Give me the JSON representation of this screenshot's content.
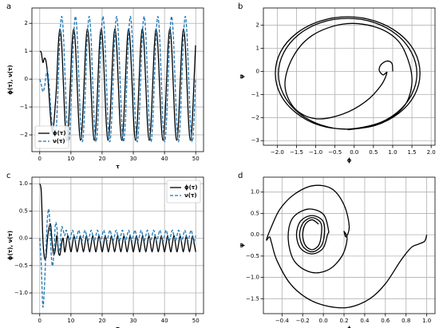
{
  "chart_data": [
    {
      "type": "line",
      "label": "a",
      "xlabel": "τ",
      "ylabel": "ϕ(τ), ν(τ)",
      "grid": true,
      "legend": "lower left",
      "xlim": [
        -2.5,
        52.5
      ],
      "ylim": [
        -2.6,
        2.55
      ],
      "xticks": [
        0,
        10,
        20,
        30,
        40,
        50
      ],
      "yticks": [
        {
          "value": -2,
          "label": "−2"
        },
        {
          "value": -1,
          "label": "−1"
        },
        0,
        1,
        2
      ],
      "x": [
        0,
        0.5,
        1,
        1.5,
        2,
        2.5,
        3,
        3.5,
        4,
        4.5,
        5,
        5.4,
        5.95,
        6.5,
        7.05,
        7.6,
        8.15,
        8.7,
        9.25,
        9.8,
        10.35,
        10.9,
        11.45,
        12,
        12.55,
        13.1,
        13.65,
        14.2,
        14.75,
        15.3,
        15.85,
        16.4,
        16.95,
        17.5,
        18.05,
        18.6,
        19.15,
        19.7,
        20.25,
        20.8,
        21.35,
        21.9,
        22.45,
        23,
        23.55,
        24.1,
        24.65,
        25.2,
        25.75,
        26.3,
        26.85,
        27.4,
        27.95,
        28.5,
        29.05,
        29.6,
        30.15,
        30.7,
        31.25,
        31.8,
        32.35,
        32.9,
        33.45,
        34,
        34.55,
        35.1,
        35.65,
        36.2,
        36.75,
        37.3,
        37.85,
        38.4,
        38.95,
        39.5,
        40.05,
        40.6,
        41.15,
        41.7,
        42.25,
        42.8,
        43.35,
        43.9,
        44.45,
        45,
        45.55,
        46.1,
        46.65,
        47.2,
        47.75,
        48.3,
        48.85,
        49.4,
        49.95
      ],
      "series": [
        {
          "name": "ϕ(τ)",
          "color": "#000000",
          "linestyle": "solid",
          "values": [
            1.0,
            0.95,
            0.6,
            0.75,
            0.65,
            0.2,
            -0.6,
            -1.4,
            -1.9,
            -1.6,
            -0.9,
            -0.2,
            1.21,
            1.8,
            1.21,
            -0.2,
            -1.61,
            -2.2,
            -1.61,
            -0.2,
            1.21,
            1.8,
            1.21,
            -0.2,
            -1.61,
            -2.2,
            -1.61,
            -0.2,
            1.21,
            1.8,
            1.21,
            -0.2,
            -1.61,
            -2.2,
            -1.61,
            -0.2,
            1.21,
            1.8,
            1.21,
            -0.2,
            -1.61,
            -2.2,
            -1.61,
            -0.2,
            1.21,
            1.8,
            1.21,
            -0.2,
            -1.61,
            -2.2,
            -1.61,
            -0.2,
            1.21,
            1.8,
            1.21,
            -0.2,
            -1.61,
            -2.2,
            -1.61,
            -0.2,
            1.21,
            1.8,
            1.21,
            -0.2,
            -1.61,
            -2.2,
            -1.61,
            -0.2,
            1.21,
            1.8,
            1.21,
            -0.2,
            -1.61,
            -2.2,
            -1.61,
            -0.2,
            1.21,
            1.8,
            1.21,
            -0.2,
            -1.61,
            -2.2,
            -1.61,
            -0.2,
            1.21,
            1.8,
            1.21,
            -0.2,
            -1.61,
            -2.2,
            -1.61,
            -0.2,
            1.21
          ]
        },
        {
          "name": "ν(τ)",
          "color": "#1f77b4",
          "linestyle": "dashed",
          "values": [
            0,
            -0.2,
            -0.45,
            -0.3,
            0.1,
            0.3,
            -0.2,
            -1.0,
            -1.7,
            -1.95,
            -1.85,
            -1.59,
            0,
            1.59,
            2.25,
            1.59,
            0,
            -1.59,
            -2.25,
            -1.59,
            0,
            1.59,
            2.25,
            1.59,
            0,
            -1.59,
            -2.25,
            -1.59,
            0,
            1.59,
            2.25,
            1.59,
            0,
            -1.59,
            -2.25,
            -1.59,
            0,
            1.59,
            2.25,
            1.59,
            0,
            -1.59,
            -2.25,
            -1.59,
            0,
            1.59,
            2.25,
            1.59,
            0,
            -1.59,
            -2.25,
            -1.59,
            0,
            1.59,
            2.25,
            1.59,
            0,
            -1.59,
            -2.25,
            -1.59,
            0,
            1.59,
            2.25,
            1.59,
            0,
            -1.59,
            -2.25,
            -1.59,
            0,
            1.59,
            2.25,
            1.59,
            0,
            -1.59,
            -2.25,
            -1.59,
            0,
            1.59,
            2.25,
            1.59,
            0,
            -1.59,
            -2.25,
            -1.59,
            0,
            1.59,
            2.25,
            1.59,
            0,
            -1.59,
            -2.25,
            -1.59,
            0
          ]
        }
      ]
    },
    {
      "type": "line",
      "label": "b",
      "xlabel": "ϕ",
      "ylabel": "ψ",
      "grid": true,
      "color": "#000000",
      "xlim": [
        -2.36,
        2.1
      ],
      "ylim": [
        -3.2,
        2.75
      ],
      "xticks": [
        {
          "value": -2.0,
          "label": "−2.0"
        },
        {
          "value": -1.5,
          "label": "−1.5"
        },
        {
          "value": -1.0,
          "label": "−1.0"
        },
        {
          "value": -0.5,
          "label": "−0.5"
        },
        {
          "value": 0.0,
          "label": "0.0"
        },
        0.5,
        {
          "value": 1.0,
          "label": "1.0"
        },
        1.5,
        {
          "value": 2.0,
          "label": "2.0"
        }
      ],
      "yticks": [
        {
          "value": -3,
          "label": "−3"
        },
        {
          "value": -2,
          "label": "−2"
        },
        {
          "value": -1,
          "label": "−1"
        },
        0,
        1,
        2
      ],
      "x": [
        1.0,
        0.98,
        0.85,
        0.7,
        0.65,
        0.75,
        0.85,
        0.7,
        0.3,
        -0.3,
        -1.0,
        -1.55,
        -1.8,
        -1.6,
        -1.1,
        -0.3,
        0.5,
        1.1,
        1.4,
        1.5,
        1.3,
        0.7,
        -0.17,
        -0.86,
        -1.44,
        -1.83,
        -1.97,
        -1.83,
        -1.44,
        -0.86,
        -0.17,
        0.52,
        1.1,
        1.49,
        1.63,
        1.49,
        1.1,
        0.52,
        -0.17,
        -0.89,
        -1.5,
        -1.91,
        -2.05,
        -1.91,
        -1.5,
        -0.89,
        -0.17,
        0.55,
        1.16,
        1.57,
        1.71,
        1.57,
        1.16,
        0.55,
        -0.17
      ],
      "values": [
        0,
        0.35,
        0.45,
        0.3,
        0.05,
        -0.15,
        -0.05,
        -0.6,
        -1.3,
        -1.85,
        -2.05,
        -1.6,
        -0.6,
        0.6,
        1.55,
        2.05,
        1.95,
        1.4,
        0.5,
        -0.5,
        -1.5,
        -2.2,
        -2.5,
        -2.32,
        -1.8,
        -1.02,
        -0.1,
        0.82,
        1.6,
        2.12,
        2.3,
        2.12,
        1.6,
        0.82,
        -0.1,
        -1.02,
        -1.8,
        -2.32,
        -2.5,
        -2.34,
        -1.81,
        -1.02,
        -0.08,
        0.86,
        1.65,
        2.18,
        2.37,
        2.18,
        1.65,
        0.86,
        -0.08,
        -1.02,
        -1.81,
        -2.34,
        -2.53
      ]
    },
    {
      "type": "line",
      "label": "c",
      "xlabel": "τ",
      "ylabel": "ϕ(τ), ν(τ)",
      "grid": true,
      "legend": "upper right",
      "xlim": [
        -2.5,
        52.5
      ],
      "ylim": [
        -1.38,
        1.12
      ],
      "xticks": [
        0,
        10,
        20,
        30,
        40,
        50
      ],
      "yticks": [
        {
          "value": -1.0,
          "label": "−1.0"
        },
        {
          "value": -0.5,
          "label": "−0.5"
        },
        {
          "value": 0.0,
          "label": "0.0"
        },
        0.5,
        {
          "value": 1.0,
          "label": "1.0"
        }
      ],
      "x": [
        0,
        0.5,
        1,
        1.5,
        2,
        2.5,
        3,
        3.5,
        4,
        4.5,
        5,
        5.5,
        6,
        6.5,
        7,
        7.5,
        8,
        8.5,
        9,
        9.5,
        10,
        10.5,
        11,
        11.5,
        12,
        12.5,
        13,
        13.5,
        14,
        14.5,
        15,
        15.5,
        16,
        16.5,
        17,
        17.5,
        18,
        18.5,
        19,
        19.5,
        20,
        20.5,
        21,
        21.5,
        22,
        22.5,
        23,
        23.5,
        24,
        24.5,
        25,
        25.5,
        26,
        26.5,
        27,
        27.5,
        28,
        28.5,
        29,
        29.5,
        30,
        30.5,
        31,
        31.5,
        32,
        32.5,
        33,
        33.5,
        34,
        34.5,
        35,
        35.5,
        36,
        36.5,
        37,
        37.5,
        38,
        38.5,
        39,
        39.5,
        40,
        40.5,
        41,
        41.5,
        42,
        42.5,
        43,
        43.5,
        44,
        44.5,
        45,
        45.5,
        46,
        46.5,
        47,
        47.5,
        48,
        48.5,
        49,
        49.5,
        50
      ],
      "series": [
        {
          "name": "ϕ(τ)",
          "color": "#000000",
          "linestyle": "solid",
          "values": [
            1.0,
            0.85,
            0.0,
            -0.35,
            -0.35,
            0.0,
            0.2,
            0.25,
            -0.1,
            -0.3,
            -0.2,
            0.05,
            -0.25,
            -0.3,
            -0.1,
            0.0,
            -0.25,
            -0.1,
            0.05,
            -0.1,
            -0.25,
            -0.1,
            0.05,
            -0.1,
            -0.25,
            -0.1,
            0.05,
            -0.1,
            -0.25,
            -0.1,
            0.05,
            -0.1,
            -0.25,
            -0.1,
            0.05,
            -0.1,
            -0.25,
            -0.1,
            0.05,
            -0.1,
            -0.25,
            -0.1,
            0.05,
            -0.1,
            -0.25,
            -0.1,
            0.05,
            -0.1,
            -0.25,
            -0.1,
            0.05,
            -0.1,
            -0.25,
            -0.1,
            0.05,
            -0.1,
            -0.25,
            -0.1,
            0.05,
            -0.1,
            -0.25,
            -0.1,
            0.05,
            -0.1,
            -0.25,
            -0.1,
            0.05,
            -0.1,
            -0.25,
            -0.1,
            0.05,
            -0.1,
            -0.25,
            -0.1,
            0.05,
            -0.1,
            -0.25,
            -0.1,
            0.05,
            -0.1,
            -0.25,
            -0.1,
            0.05,
            -0.1,
            -0.25,
            -0.1,
            0.05,
            -0.1,
            -0.25,
            -0.1,
            0.05,
            -0.1,
            -0.25,
            -0.1,
            0.05,
            -0.1,
            -0.25,
            -0.1,
            0.05,
            -0.1,
            -0.25
          ]
        },
        {
          "name": "ν(τ)",
          "color": "#1f77b4",
          "linestyle": "dashed",
          "values": [
            0,
            -0.5,
            -1.25,
            -0.9,
            -0.2,
            0.4,
            0.5,
            -0.1,
            -0.5,
            -0.3,
            0.25,
            0.2,
            -0.2,
            -0.15,
            0.2,
            0.15,
            0.05,
            0.15,
            0.05,
            -0.05,
            0.05,
            0.15,
            0.05,
            -0.05,
            0.05,
            0.15,
            0.05,
            -0.05,
            0.05,
            0.15,
            0.05,
            -0.05,
            0.05,
            0.15,
            0.05,
            -0.05,
            0.05,
            0.15,
            0.05,
            -0.05,
            0.05,
            0.15,
            0.05,
            -0.05,
            0.05,
            0.15,
            0.05,
            -0.05,
            0.05,
            0.15,
            0.05,
            -0.05,
            0.05,
            0.15,
            0.05,
            -0.05,
            0.05,
            0.15,
            0.05,
            -0.05,
            0.05,
            0.15,
            0.05,
            -0.05,
            0.05,
            0.15,
            0.05,
            -0.05,
            0.05,
            0.15,
            0.05,
            -0.05,
            0.05,
            0.15,
            0.05,
            -0.05,
            0.05,
            0.15,
            0.05,
            -0.05,
            0.05,
            0.15,
            0.05,
            -0.05,
            0.05,
            0.15,
            0.05,
            -0.05,
            0.05,
            0.15,
            0.05,
            -0.05,
            0.05,
            0.15,
            0.05,
            -0.05,
            0.05,
            0.15,
            0.05,
            -0.05,
            0.05
          ]
        }
      ]
    },
    {
      "type": "line",
      "label": "d",
      "xlabel": "ϕ",
      "ylabel": "ψ",
      "grid": true,
      "color": "#000000",
      "xlim": [
        -0.58,
        1.08
      ],
      "ylim": [
        -1.85,
        1.35
      ],
      "xticks": [
        {
          "value": -0.4,
          "label": "−0.4"
        },
        {
          "value": -0.2,
          "label": "−0.2"
        },
        {
          "value": 0.0,
          "label": "0.0"
        },
        0.2,
        0.4,
        0.6,
        0.8,
        {
          "value": 1.0,
          "label": "1.0"
        }
      ],
      "yticks": [
        {
          "value": -1.5,
          "label": "−1.5"
        },
        {
          "value": -1.0,
          "label": "−1.0"
        },
        {
          "value": -0.5,
          "label": "−0.5"
        },
        {
          "value": 0.0,
          "label": "0.0"
        },
        0.5,
        {
          "value": 1.0,
          "label": "1.0"
        }
      ],
      "x": [
        1.0,
        0.98,
        0.92,
        0.85,
        0.75,
        0.6,
        0.45,
        0.25,
        0.05,
        -0.15,
        -0.32,
        -0.45,
        -0.5,
        -0.52,
        -0.55,
        -0.5,
        -0.42,
        -0.28,
        -0.1,
        0.08,
        0.2,
        0.25,
        0.22,
        0.2,
        0.23,
        0.18,
        0.05,
        -0.12,
        -0.28,
        -0.34,
        -0.3,
        -0.15,
        0.0,
        0.05,
        0.04,
        -0.004,
        -0.11,
        -0.22,
        -0.26,
        -0.22,
        -0.11,
        -0.004,
        0.01,
        -0.025,
        -0.11,
        -0.195,
        -0.23,
        -0.195,
        -0.11,
        -0.025,
        -0.02,
        -0.046,
        -0.11,
        -0.174,
        -0.2,
        -0.174,
        -0.11,
        -0.046
      ],
      "values": [
        0,
        -0.15,
        -0.22,
        -0.3,
        -0.6,
        -1.15,
        -1.5,
        -1.7,
        -1.68,
        -1.5,
        -1.15,
        -0.6,
        -0.2,
        -0.05,
        -0.12,
        0.2,
        0.6,
        0.95,
        1.15,
        1.08,
        0.7,
        0.2,
        -0.05,
        0.08,
        -0.1,
        -0.5,
        -0.82,
        -0.88,
        -0.62,
        -0.1,
        0.38,
        0.6,
        0.48,
        0.1,
        0,
        -0.32,
        -0.45,
        -0.32,
        0,
        0.32,
        0.45,
        0.32,
        0,
        -0.28,
        -0.4,
        -0.28,
        0,
        0.28,
        0.4,
        0.28,
        0,
        -0.25,
        -0.35,
        -0.25,
        0,
        0.25,
        0.35,
        0.25
      ]
    }
  ]
}
